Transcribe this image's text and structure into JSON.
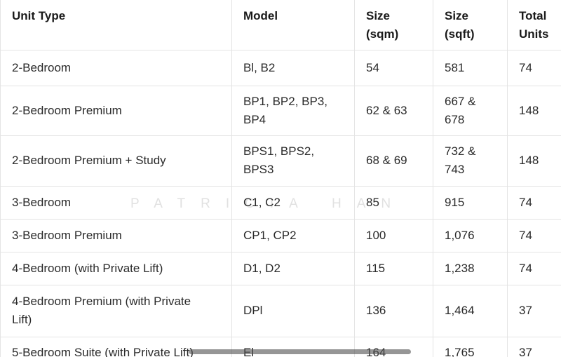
{
  "watermark": {
    "text": "PATRICIA HAN"
  },
  "table": {
    "columns": [
      {
        "label": "Unit Type"
      },
      {
        "label": "Model"
      },
      {
        "label": "Size (sqm)"
      },
      {
        "label": "Size (sqft)"
      },
      {
        "label": "Total Units"
      }
    ],
    "rows": [
      {
        "unit_type": "2-Bedroom",
        "model": "Bl, B2",
        "size_sqm": "54",
        "size_sqft": "581",
        "total_units": "74"
      },
      {
        "unit_type": "2-Bedroom Premium",
        "model": "BP1, BP2, BP3,\nBP4",
        "size_sqm": "62 & 63",
        "size_sqft": "667 &\n678",
        "total_units": "148"
      },
      {
        "unit_type": "2-Bedroom Premium + Study",
        "model": "BPS1, BPS2,\nBPS3",
        "size_sqm": "68 & 69",
        "size_sqft": "732 &\n743",
        "total_units": "148"
      },
      {
        "unit_type": "3-Bedroom",
        "model": "C1, C2",
        "size_sqm": "85",
        "size_sqft": "915",
        "total_units": "74"
      },
      {
        "unit_type": "3-Bedroom Premium",
        "model": "CP1, CP2",
        "size_sqm": "100",
        "size_sqft": "1,076",
        "total_units": "74"
      },
      {
        "unit_type": "4-Bedroom (with Private Lift)",
        "model": "D1, D2",
        "size_sqm": "115",
        "size_sqft": "1,238",
        "total_units": "74"
      },
      {
        "unit_type": "4-Bedroom Premium (with Private\nLift)",
        "model": "DPl",
        "size_sqm": "136",
        "size_sqft": "1,464",
        "total_units": "37"
      },
      {
        "unit_type": "5-Bedroom Suite (with Private Lift)",
        "model": "El",
        "size_sqm": "164",
        "size_sqft": "1,765",
        "total_units": "37"
      }
    ]
  },
  "colors": {
    "border": "#e4e4e4",
    "text": "#2a2a2a",
    "header_text": "#1a1a1a",
    "watermark": "#e1e1e1",
    "scrollbar": "rgba(80,80,80,0.6)"
  }
}
